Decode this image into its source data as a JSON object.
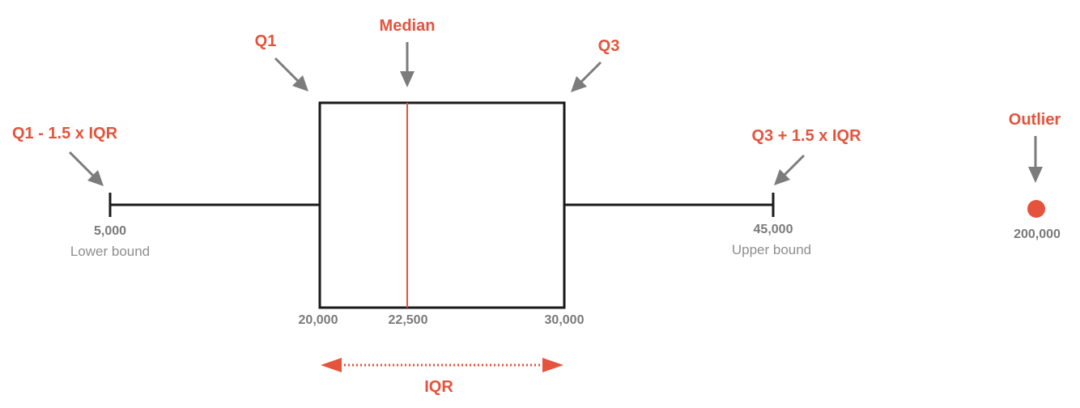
{
  "labels": {
    "q1": "Q1",
    "median": "Median",
    "q3": "Q3",
    "lower_fence": "Q1 - 1.5 x IQR",
    "upper_fence": "Q3 + 1.5 x IQR",
    "outlier": "Outlier",
    "iqr": "IQR"
  },
  "values": {
    "lower_bound": "5,000",
    "q1": "20,000",
    "median": "22,500",
    "q3": "30,000",
    "upper_bound": "45,000",
    "outlier": "200,000"
  },
  "captions": {
    "lower_bound": "Lower bound",
    "upper_bound": "Upper bound"
  },
  "colors": {
    "accent": "#e5533c",
    "line": "#1a1a1a",
    "arrow": "#7c7c7c",
    "value_text": "#7a7a7a"
  },
  "icons": {
    "pointer": "down-arrow-icon",
    "diagonal_pointer": "diagonal-arrow-icon",
    "iqr_span": "double-headed-arrow-icon"
  }
}
